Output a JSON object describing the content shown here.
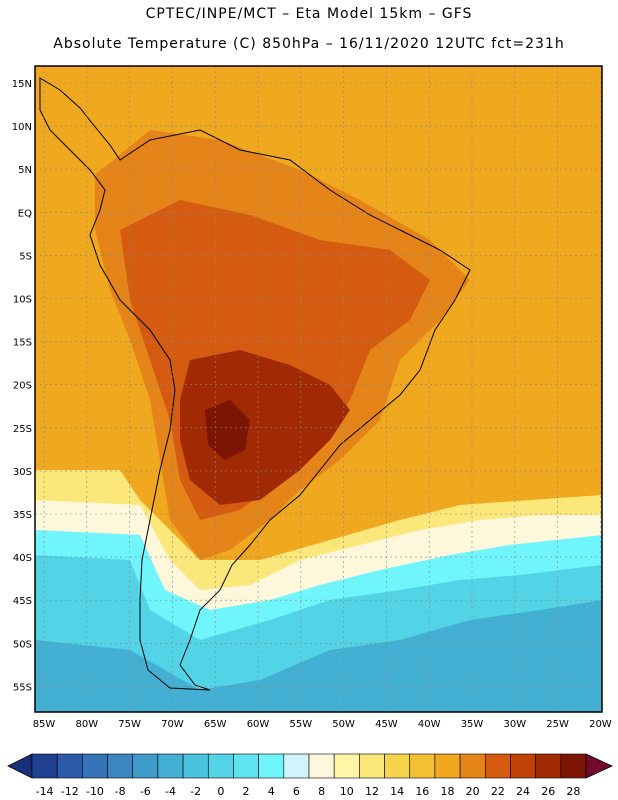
{
  "header": {
    "line1": "CPTEC/INPE/MCT –  Eta Model 15km – GFS",
    "line2": "Absolute Temperature (C) 850hPa – 16/11/2020 12UTC fct=231h"
  },
  "axes": {
    "lat_labels": [
      "15N",
      "10N",
      "5N",
      "EQ",
      "5S",
      "10S",
      "15S",
      "20S",
      "25S",
      "30S",
      "35S",
      "40S",
      "45S",
      "50S",
      "55S"
    ],
    "lon_labels": [
      "85W",
      "80W",
      "75W",
      "70W",
      "65W",
      "60W",
      "55W",
      "50W",
      "45W",
      "40W",
      "35W",
      "30W",
      "25W",
      "20W"
    ]
  },
  "colorbar": {
    "labels": [
      "-14",
      "-12",
      "-10",
      "-8",
      "-6",
      "-4",
      "-2",
      "0",
      "2",
      "4",
      "6",
      "8",
      "10",
      "12",
      "14",
      "16",
      "18",
      "20",
      "22",
      "24",
      "26",
      "28"
    ],
    "colors": [
      "#1f3f8f",
      "#2a5aa8",
      "#3572b8",
      "#3b86c0",
      "#3f9bc9",
      "#43b0d3",
      "#4ac3dc",
      "#53d3e6",
      "#5fe4ef",
      "#6ff5fb",
      "#cff4fb",
      "#fdf7dc",
      "#fef6a6",
      "#fbe77a",
      "#f7d44d",
      "#f4c033",
      "#f0a81e",
      "#e58418",
      "#d45b10",
      "#c14207",
      "#a12a05",
      "#7d1505"
    ],
    "under_color": "#1a2f7a",
    "over_color": "#730a2c"
  },
  "regions": {
    "background_warm": "#f0a81e",
    "amazon": "#e58418",
    "brazil_core": "#d45b10",
    "hot_core": "#a12a05",
    "max_core": "#7d1505",
    "southern_cold": "#53d3e6",
    "southern_coldest": "#43b0d3",
    "transition_cool": "#6ff5fb",
    "transition_mild": "#fdf7dc",
    "transition_yellow": "#fbe77a"
  }
}
